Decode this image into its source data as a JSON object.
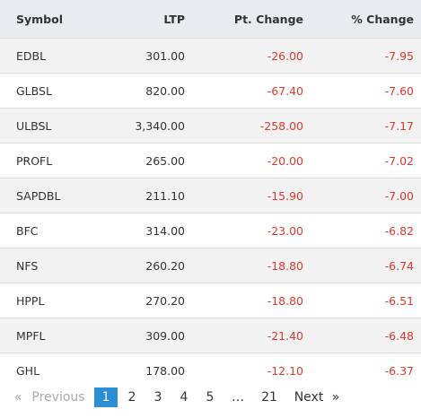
{
  "table": {
    "header": [
      "Symbol",
      "LTP",
      "Pt. Change",
      "% Change"
    ],
    "rows": [
      [
        "EDBL",
        "301.00",
        "-26.00",
        "-7.95"
      ],
      [
        "GLBSL",
        "820.00",
        "-67.40",
        "-7.60"
      ],
      [
        "ULBSL",
        "3,340.00",
        "-258.00",
        "-7.17"
      ],
      [
        "PROFL",
        "265.00",
        "-20.00",
        "-7.02"
      ],
      [
        "SAPDBL",
        "211.10",
        "-15.90",
        "-7.00"
      ],
      [
        "BFC",
        "314.00",
        "-23.00",
        "-6.82"
      ],
      [
        "NFS",
        "260.20",
        "-18.80",
        "-6.74"
      ],
      [
        "HPPL",
        "270.20",
        "-18.80",
        "-6.51"
      ],
      [
        "MPFL",
        "309.00",
        "-21.40",
        "-6.48"
      ],
      [
        "GHL",
        "178.00",
        "-12.10",
        "-6.37"
      ]
    ]
  },
  "pagination": [
    "«",
    "Previous",
    "1",
    "2",
    "3",
    "4",
    "5",
    "…",
    "21",
    "Next",
    "»"
  ]
}
